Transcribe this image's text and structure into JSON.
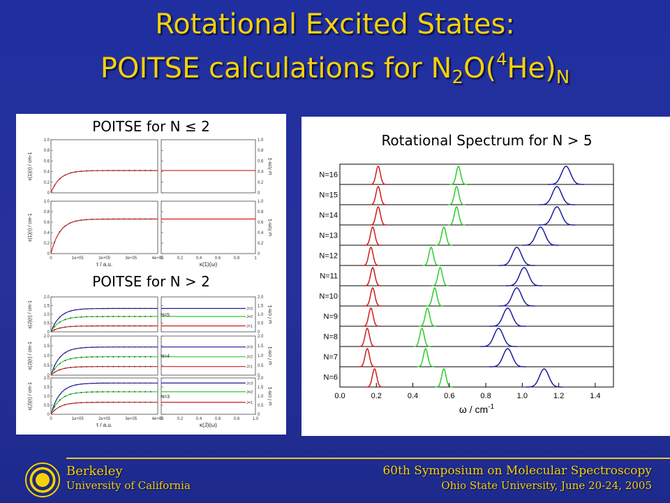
{
  "title": {
    "line1": "Rotational Excited States:",
    "line2_prefix": "POITSE calculations for N",
    "line2_sub1": "2",
    "line2_mid": "O(",
    "line2_sup": "4",
    "line2_he": "He)",
    "line2_sub2": "N"
  },
  "left_panel": {
    "title_top": "POITSE for N ≤ 2",
    "title_bottom": "POITSE for N > 2",
    "top_plots": {
      "ylabel": "ε(1)(τ) / cm-1",
      "xlabel": "τ / a.u.",
      "rylabel": "ω /cm-1",
      "rxlabel": "κ(1)(ω)",
      "yticks": [
        "0",
        "0.2",
        "0.4",
        "0.6",
        "0.8",
        "1.0"
      ],
      "xticks": [
        "0",
        "1e+05",
        "2e+05",
        "3e+05",
        "4e+05"
      ],
      "rxticks": [
        "0",
        "0.2",
        "0.4",
        "0.6",
        "0.8",
        "1"
      ]
    },
    "bottom_plots": {
      "ylabel": "ε(J)(τ) / cm-1",
      "xlabel": "τ / a.u.",
      "rylabel": "ω / cm-1",
      "rxlabel": "κ(J)(ω)",
      "yticks": [
        "0",
        "0.5",
        "1.0",
        "1.5",
        "2.0"
      ],
      "xticks": [
        "0",
        "1e+05",
        "2e+05",
        "3e+05",
        "4e+05"
      ],
      "rxticks": [
        "0",
        "0.2",
        "0.4",
        "0.6",
        "0.8",
        "1.0"
      ],
      "rows": [
        "N=5",
        "N=4",
        "N=3"
      ],
      "jlabels": [
        "J=3",
        "J=2",
        "J=1"
      ]
    }
  },
  "right_panel": {
    "title": "Rotational Spectrum for N > 5",
    "xlabel": "ω / cm",
    "xlabel_sup": "-1",
    "xticks": [
      "0.0",
      "0.2",
      "0.4",
      "0.6",
      "0.8",
      "1.0",
      "1.2",
      "1.4"
    ],
    "rows": [
      "N=16",
      "N=15",
      "N=14",
      "N=13",
      "N=12",
      "N=11",
      "N=10",
      "N=9",
      "N=8",
      "N=7",
      "N=6"
    ]
  },
  "chart_data": {
    "type": "line",
    "title": "Rotational Spectrum for N > 5",
    "xlabel": "ω / cm-1",
    "xlim": [
      0.0,
      1.5
    ],
    "categories": [
      "N=16",
      "N=15",
      "N=14",
      "N=13",
      "N=12",
      "N=11",
      "N=10",
      "N=9",
      "N=8",
      "N=7",
      "N=6"
    ],
    "series": [
      {
        "color": "#d11a1a",
        "peaks": [
          0.21,
          0.21,
          0.21,
          0.18,
          0.17,
          0.18,
          0.18,
          0.17,
          0.15,
          0.15,
          0.19
        ]
      },
      {
        "color": "#2ccc2c",
        "peaks": [
          0.65,
          0.64,
          0.64,
          0.57,
          0.5,
          0.55,
          0.52,
          0.48,
          0.45,
          0.47,
          0.57
        ]
      },
      {
        "color": "#1a1aa0",
        "peaks": [
          1.24,
          1.19,
          1.19,
          1.1,
          0.97,
          1.01,
          0.97,
          0.92,
          0.87,
          0.92,
          1.12
        ]
      }
    ]
  },
  "footer": {
    "left_line1": "Berkeley",
    "left_line2": "University of California",
    "right_line1": "60th Symposium on Molecular Spectroscopy",
    "right_line2": "Ohio State University, June 20-24, 2005"
  },
  "colors": {
    "background": "#24309a",
    "title": "#f5d10a",
    "red": "#d11a1a",
    "green": "#2ccc2c",
    "blue": "#1a1aa0"
  }
}
